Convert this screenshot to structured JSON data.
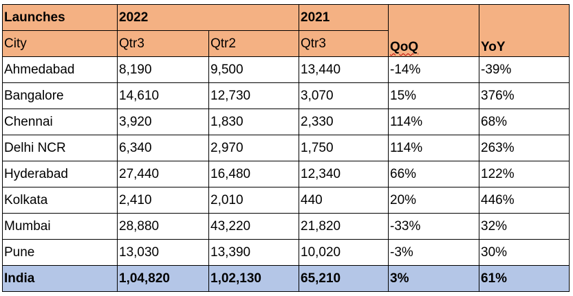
{
  "table": {
    "header_row1": {
      "launches": "Launches",
      "year_2022": "2022",
      "year_2021": "2021",
      "qoq": "QoQ",
      "yoy": "YoY"
    },
    "header_row2": {
      "city": "City",
      "q3_2022": "Qtr3",
      "q2_2022": "Qtr2",
      "q3_2021": "Qtr3"
    },
    "rows": [
      {
        "city": "Ahmedabad",
        "q3_2022": "8,190",
        "q2_2022": "9,500",
        "q3_2021": "13,440",
        "qoq": "-14%",
        "yoy": "-39%"
      },
      {
        "city": "Bangalore",
        "q3_2022": "14,610",
        "q2_2022": "12,730",
        "q3_2021": "3,070",
        "qoq": "15%",
        "yoy": "376%"
      },
      {
        "city": "Chennai",
        "q3_2022": "3,920",
        "q2_2022": "1,830",
        "q3_2021": "2,330",
        "qoq": "114%",
        "yoy": "68%"
      },
      {
        "city": "Delhi NCR",
        "q3_2022": "6,340",
        "q2_2022": "2,970",
        "q3_2021": "1,750",
        "qoq": "114%",
        "yoy": "263%"
      },
      {
        "city": "Hyderabad",
        "q3_2022": "27,440",
        "q2_2022": "16,480",
        "q3_2021": "12,340",
        "qoq": "66%",
        "yoy": "122%"
      },
      {
        "city": "Kolkata",
        "q3_2022": "2,410",
        "q2_2022": "2,010",
        "q3_2021": "440",
        "qoq": "20%",
        "yoy": "446%"
      },
      {
        "city": "Mumbai",
        "q3_2022": "28,880",
        "q2_2022": "43,220",
        "q3_2021": "21,820",
        "qoq": "-33%",
        "yoy": "32%"
      },
      {
        "city": "Pune",
        "q3_2022": "13,030",
        "q2_2022": "13,390",
        "q3_2021": "10,020",
        "qoq": "-3%",
        "yoy": "30%"
      }
    ],
    "total": {
      "city": "India",
      "q3_2022": "1,04,820",
      "q2_2022": "1,02,130",
      "q3_2021": "65,210",
      "qoq": "3%",
      "yoy": "61%"
    }
  },
  "colors": {
    "header_bg": "#f4b183",
    "total_bg": "#b4c6e7",
    "border": "#000000"
  }
}
